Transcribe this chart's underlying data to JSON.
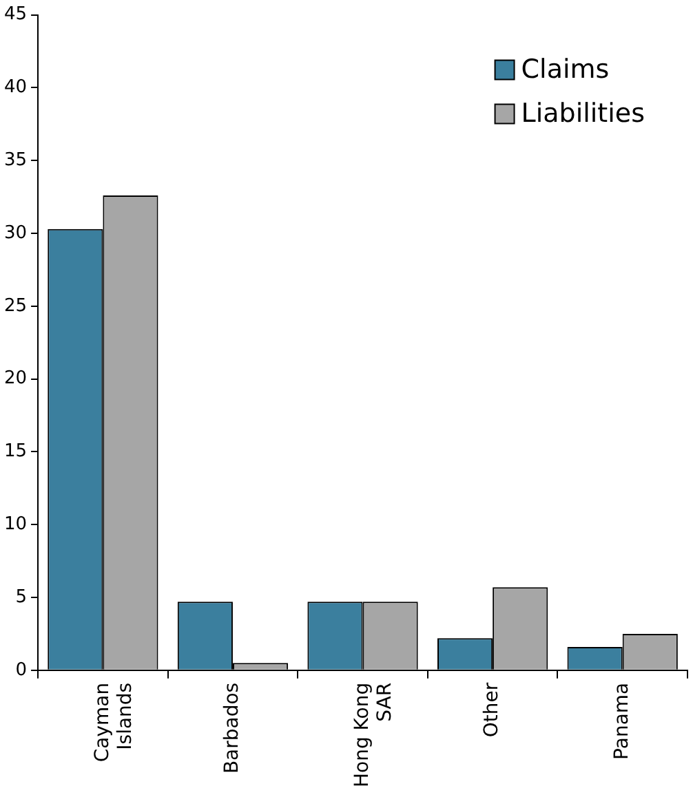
{
  "chart_data": {
    "type": "bar",
    "categories": [
      "Cayman Islands",
      "Barbados",
      "Hong Kong SAR",
      "Other",
      "Panama"
    ],
    "series": [
      {
        "name": "Claims",
        "color": "#3b7f9e",
        "values": [
          30.3,
          4.7,
          4.7,
          2.2,
          1.6
        ]
      },
      {
        "name": "Liabilities",
        "color": "#a6a6a6",
        "values": [
          32.6,
          0.5,
          4.7,
          5.7,
          2.5
        ]
      }
    ],
    "ylim": [
      0,
      45
    ],
    "yticks": [
      0,
      5,
      10,
      15,
      20,
      25,
      30,
      35,
      40,
      45
    ],
    "grid": false,
    "legend": "top right"
  }
}
